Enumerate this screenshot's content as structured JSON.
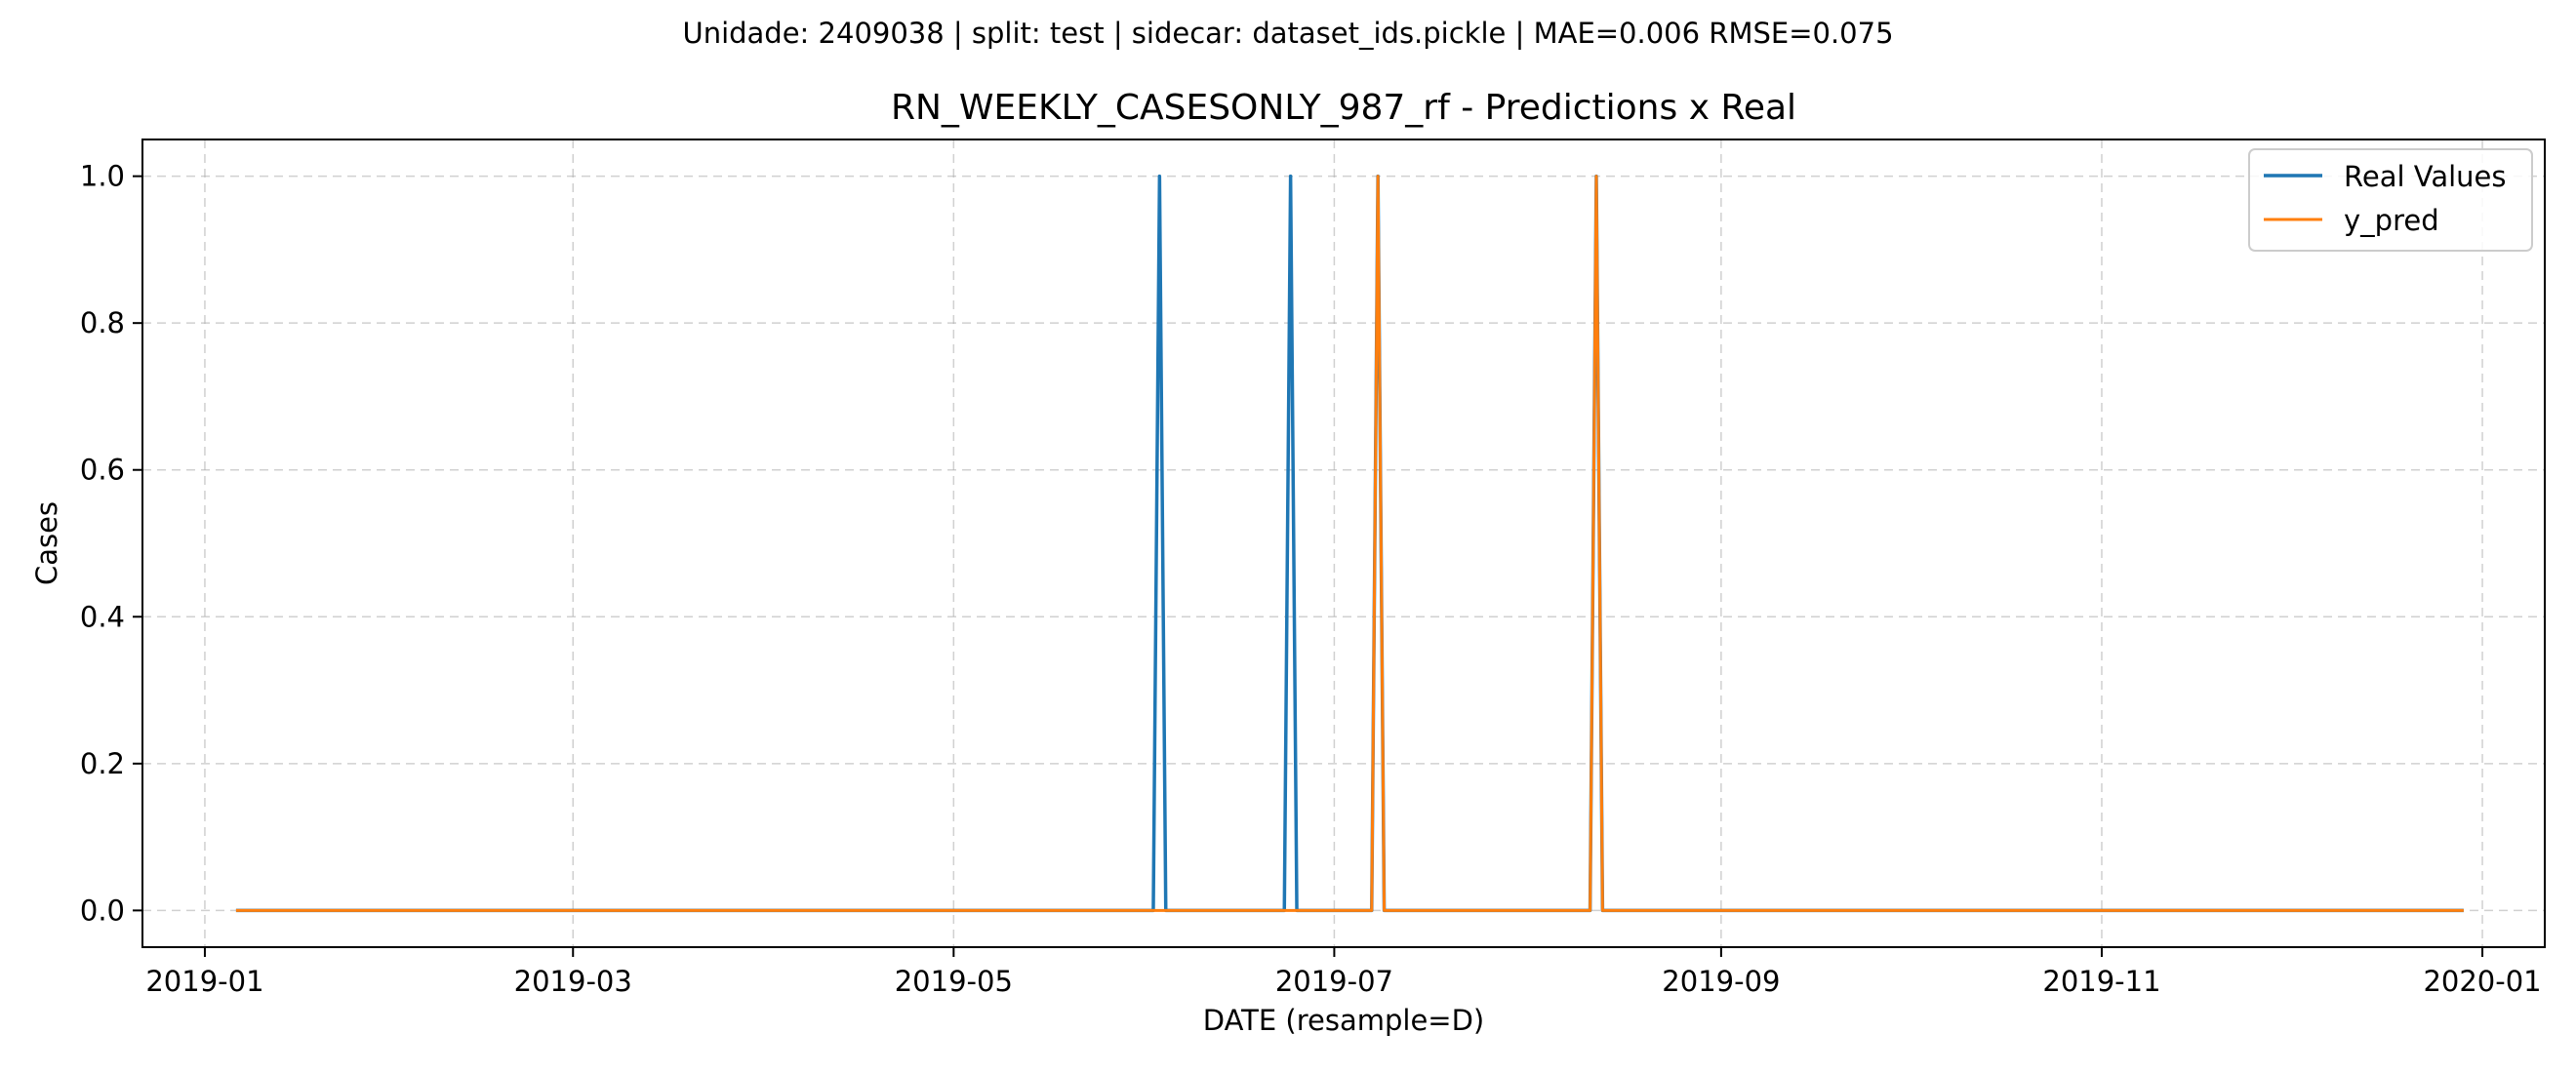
{
  "chart_data": {
    "type": "line",
    "suptitle": "Unidade: 2409038 | split: test | sidecar: dataset_ids.pickle | MAE=0.006  RMSE=0.075",
    "title": "RN_WEEKLY_CASESONLY_987_rf - Predictions x Real",
    "xlabel": "DATE (resample=D)",
    "ylabel": "Cases",
    "xlim": [
      "2018-12-22",
      "2020-01-11"
    ],
    "ylim": [
      -0.05,
      1.05
    ],
    "xticks": [
      "2019-01",
      "2019-03",
      "2019-05",
      "2019-07",
      "2019-09",
      "2019-11",
      "2020-01"
    ],
    "yticks": [
      "0.0",
      "0.2",
      "0.4",
      "0.6",
      "0.8",
      "1.0"
    ],
    "grid": true,
    "legend_position": "top-right",
    "series": [
      {
        "name": "Real Values",
        "color": "#1f77b4",
        "points": [
          [
            "2019-01-06",
            0
          ],
          [
            "2019-06-02",
            0
          ],
          [
            "2019-06-03",
            1
          ],
          [
            "2019-06-04",
            0
          ],
          [
            "2019-06-23",
            0
          ],
          [
            "2019-06-24",
            1
          ],
          [
            "2019-06-25",
            0
          ],
          [
            "2019-07-07",
            0
          ],
          [
            "2019-07-08",
            1
          ],
          [
            "2019-07-09",
            0
          ],
          [
            "2019-08-11",
            0
          ],
          [
            "2019-08-12",
            1
          ],
          [
            "2019-08-13",
            0
          ],
          [
            "2019-12-29",
            0
          ]
        ]
      },
      {
        "name": "y_pred",
        "color": "#ff7f0e",
        "points": [
          [
            "2019-01-06",
            0
          ],
          [
            "2019-07-07",
            0
          ],
          [
            "2019-07-08",
            1
          ],
          [
            "2019-07-09",
            0
          ],
          [
            "2019-08-11",
            0
          ],
          [
            "2019-08-12",
            1
          ],
          [
            "2019-08-13",
            0
          ],
          [
            "2019-12-29",
            0
          ]
        ]
      }
    ]
  }
}
